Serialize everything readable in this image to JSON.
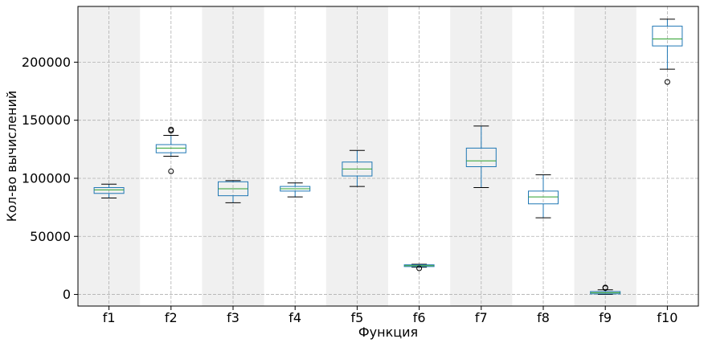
{
  "chart_data": {
    "type": "box",
    "xlabel": "Функция",
    "ylabel": "Кол-во вычислений",
    "ylim": [
      -10000,
      248000
    ],
    "yticks": [
      0,
      50000,
      100000,
      150000,
      200000
    ],
    "ytick_labels": [
      "0",
      "50000",
      "100000",
      "150000",
      "200000"
    ],
    "grid": true,
    "alternating_band_color": "#f0f0f0",
    "box_color": "#1f77b4",
    "median_color": "#2ca02c",
    "whisker_color": "#1f77b4",
    "cap_color": "#000000",
    "categories": [
      "f1",
      "f2",
      "f3",
      "f4",
      "f5",
      "f6",
      "f7",
      "f8",
      "f9",
      "f10"
    ],
    "boxes": [
      {
        "label": "f1",
        "whislo": 83000,
        "q1": 87000,
        "med": 90000,
        "q3": 92000,
        "whishi": 95000,
        "fliers": []
      },
      {
        "label": "f2",
        "whislo": 119000,
        "q1": 122000,
        "med": 126000,
        "q3": 129000,
        "whishi": 137000,
        "fliers": [
          106000,
          141000,
          142000
        ]
      },
      {
        "label": "f3",
        "whislo": 79000,
        "q1": 85000,
        "med": 91000,
        "q3": 97000,
        "whishi": 98000,
        "fliers": []
      },
      {
        "label": "f4",
        "whislo": 84000,
        "q1": 89000,
        "med": 91000,
        "q3": 93000,
        "whishi": 96000,
        "fliers": []
      },
      {
        "label": "f5",
        "whislo": 93000,
        "q1": 102000,
        "med": 108000,
        "q3": 114000,
        "whishi": 124000,
        "fliers": []
      },
      {
        "label": "f6",
        "whislo": 23500,
        "q1": 24000,
        "med": 24800,
        "q3": 25500,
        "whishi": 26000,
        "fliers": [
          22500
        ]
      },
      {
        "label": "f7",
        "whislo": 92000,
        "q1": 110000,
        "med": 115000,
        "q3": 126000,
        "whishi": 145000,
        "fliers": []
      },
      {
        "label": "f8",
        "whislo": 66000,
        "q1": 78000,
        "med": 84000,
        "q3": 89000,
        "whishi": 103000,
        "fliers": []
      },
      {
        "label": "f9",
        "whislo": 0,
        "q1": 500,
        "med": 1500,
        "q3": 2500,
        "whishi": 4000,
        "fliers": [
          5500,
          6000
        ]
      },
      {
        "label": "f10",
        "whislo": 194000,
        "q1": 214000,
        "med": 220000,
        "q3": 231000,
        "whishi": 237000,
        "fliers": [
          183000
        ]
      }
    ]
  }
}
